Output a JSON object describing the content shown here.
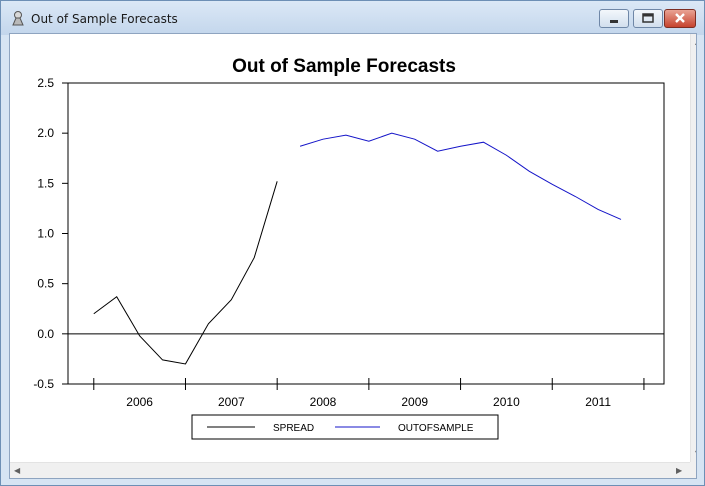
{
  "window": {
    "title": "Out of Sample Forecasts"
  },
  "chart_data": {
    "type": "line",
    "title": "Out of Sample Forecasts",
    "xlabel": "",
    "ylabel": "",
    "ylim": [
      -0.5,
      2.5
    ],
    "yticks": [
      "-0.5",
      "0.0",
      "0.5",
      "1.0",
      "1.5",
      "2.0",
      "2.5"
    ],
    "x_year_labels": [
      "2006",
      "2007",
      "2008",
      "2009",
      "2010",
      "2011"
    ],
    "legend_position": "bottom",
    "zero_line": true,
    "series": [
      {
        "name": "SPREAD",
        "color": "#000000",
        "x": [
          "2005Q4",
          "2006Q1",
          "2006Q2",
          "2006Q3",
          "2006Q4",
          "2007Q1",
          "2007Q2",
          "2007Q3",
          "2007Q4"
        ],
        "values": [
          0.2,
          0.37,
          -0.02,
          -0.26,
          -0.3,
          0.1,
          0.34,
          0.76,
          1.52
        ]
      },
      {
        "name": "OUTOFSAMPLE",
        "color": "#1414c8",
        "x": [
          "2008Q1",
          "2008Q2",
          "2008Q3",
          "2008Q4",
          "2009Q1",
          "2009Q2",
          "2009Q3",
          "2009Q4",
          "2010Q1",
          "2010Q2",
          "2010Q3",
          "2010Q4",
          "2011Q1",
          "2011Q2",
          "2011Q3"
        ],
        "values": [
          1.87,
          1.94,
          1.98,
          1.92,
          2.0,
          1.94,
          1.82,
          1.87,
          1.91,
          1.78,
          1.62,
          1.49,
          1.37,
          1.24,
          1.14
        ]
      }
    ]
  }
}
